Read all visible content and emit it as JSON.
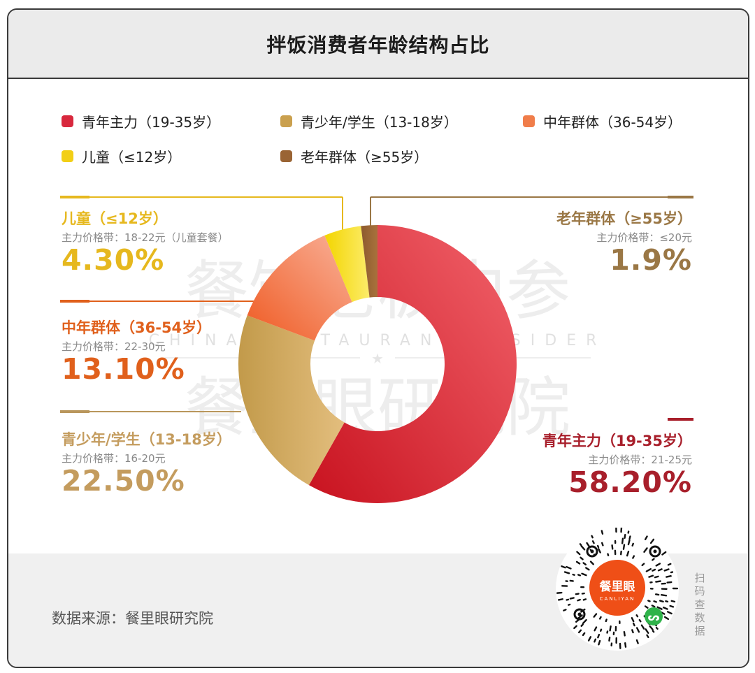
{
  "header": {
    "title": "拌饭消费者年龄结构占比"
  },
  "legend": [
    {
      "label": "青年主力（19-35岁）",
      "color": "#d8283d"
    },
    {
      "label": "青少年/学生（13-18岁）",
      "color": "#caa04e"
    },
    {
      "label": "中年群体（36-54岁）",
      "color": "#f07d4a"
    },
    {
      "label": "儿童（≤12岁）",
      "color": "#f2cf16"
    },
    {
      "label": "老年群体（≥55岁）",
      "color": "#9a6434"
    }
  ],
  "annotations": {
    "child": {
      "name": "儿童（≤12岁）",
      "price": "主力价格带：18-22元（儿童套餐）",
      "pct": "4.30%",
      "color": "#e6b81e"
    },
    "middle": {
      "name": "中年群体（36-54岁）",
      "price": "主力价格带：22-30元",
      "pct": "13.10%",
      "color": "#e0601c"
    },
    "teen": {
      "name": "青少年/学生（13-18岁）",
      "price": "主力价格带：16-20元",
      "pct": "22.50%",
      "color": "#c49c5e"
    },
    "elder": {
      "name": "老年群体（≥55岁）",
      "price": "主力价格带：≤20元",
      "pct": "1.9%",
      "color": "#9a7745"
    },
    "young": {
      "name": "青年主力（19-35岁）",
      "price": "主力价格带：21-25元",
      "pct": "58.20%",
      "color": "#a81f2b"
    }
  },
  "watermark": {
    "line1": "餐饮老板内参",
    "line2": "CHINA RESTAURANT INSIDER",
    "line3": "餐里眼研究院"
  },
  "footer": {
    "source": "数据来源：餐里眼研究院",
    "qr_side": "扫码查数据",
    "qr_label": "餐里眼",
    "qr_sub": "CANLIYAN"
  },
  "chart_data": {
    "type": "pie",
    "title": "拌饭消费者年龄结构占比",
    "donut": true,
    "categories": [
      "青年主力（19-35岁）",
      "青少年/学生（13-18岁）",
      "中年群体（36-54岁）",
      "儿童（≤12岁）",
      "老年群体（≥55岁）"
    ],
    "values": [
      58.2,
      22.5,
      13.1,
      4.3,
      1.9
    ],
    "colors": [
      "#d8283d",
      "#caa04e",
      "#f07d4a",
      "#f2cf16",
      "#9a6434"
    ],
    "legend_position": "top"
  }
}
